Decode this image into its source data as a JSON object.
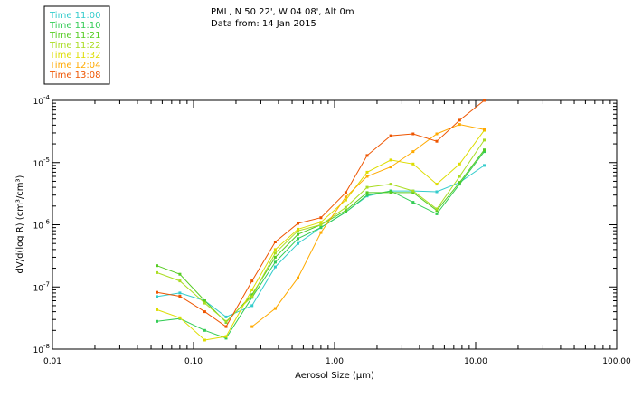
{
  "header": {
    "location": "PML, N 50 22', W 04 08', Alt 0m",
    "date_line": "Data from: 14 Jan 2015"
  },
  "chart_data": {
    "type": "line",
    "xlabel": "Aerosol Size (µm)",
    "ylabel": "dV/d(log R) (cm³/cm³)",
    "xscale": "log",
    "yscale": "log",
    "xlim": [
      0.01,
      100
    ],
    "ylim": [
      1e-08,
      0.0001
    ],
    "xticks": [
      0.01,
      0.1,
      1,
      10,
      100
    ],
    "xtick_labels": [
      "0.01",
      "0.10",
      "1.00",
      "10.00",
      "100.00"
    ],
    "yticks": [
      1e-08,
      1e-07,
      1e-06,
      1e-05,
      0.0001
    ],
    "ytick_labels": [
      {
        "base": "10",
        "exp": "-8"
      },
      {
        "base": "10",
        "exp": "-7"
      },
      {
        "base": "10",
        "exp": "-6"
      },
      {
        "base": "10",
        "exp": "-5"
      },
      {
        "base": "10",
        "exp": "-4"
      }
    ],
    "grid": false,
    "legend_position": "top-left",
    "series": [
      {
        "name": "Time 11:00",
        "color": "#33cccc",
        "x": [
          0.055,
          0.08,
          0.12,
          0.17,
          0.26,
          0.38,
          0.55,
          0.8,
          1.2,
          1.7,
          2.5,
          3.6,
          5.3,
          7.7,
          11.5
        ],
        "y": [
          7e-08,
          8e-08,
          6e-08,
          3.3e-08,
          5e-08,
          2.1e-07,
          5e-07,
          9e-07,
          1.6e-06,
          2.9e-06,
          3.5e-06,
          3.5e-06,
          3.4e-06,
          4.8e-06,
          9e-06
        ]
      },
      {
        "name": "Time 11:10",
        "color": "#33cc55",
        "x": [
          0.055,
          0.08,
          0.12,
          0.17,
          0.26,
          0.38,
          0.55,
          0.8,
          1.2,
          1.7,
          2.5,
          3.6,
          5.3,
          7.7,
          11.5
        ],
        "y": [
          2.8e-08,
          3.1e-08,
          2e-08,
          1.5e-08,
          6.8e-08,
          2.5e-07,
          6e-07,
          9e-07,
          1.6e-06,
          3e-06,
          3.5e-06,
          2.3e-06,
          1.5e-06,
          4.5e-06,
          1.5e-05
        ]
      },
      {
        "name": "Time 11:21",
        "color": "#55cc22",
        "x": [
          0.055,
          0.08,
          0.12,
          0.17,
          0.26,
          0.38,
          0.55,
          0.8,
          1.2,
          1.7,
          2.5,
          3.6,
          5.3,
          7.7,
          11.5
        ],
        "y": [
          2.2e-07,
          1.6e-07,
          6e-08,
          2.7e-08,
          7.5e-08,
          3e-07,
          7e-07,
          1e-06,
          1.7e-06,
          3.3e-06,
          3.3e-06,
          3.3e-06,
          1.7e-06,
          4.8e-06,
          1.6e-05
        ]
      },
      {
        "name": "Time 11:22",
        "color": "#aadd22",
        "x": [
          0.055,
          0.08,
          0.12,
          0.17,
          0.26,
          0.38,
          0.55,
          0.8,
          1.2,
          1.7,
          2.5,
          3.6,
          5.3,
          7.7,
          11.5
        ],
        "y": [
          1.7e-07,
          1.25e-07,
          5.5e-08,
          2.8e-08,
          7e-08,
          3.5e-07,
          8e-07,
          1e-06,
          1.9e-06,
          4e-06,
          4.5e-06,
          3.5e-06,
          1.8e-06,
          6e-06,
          2.3e-05
        ]
      },
      {
        "name": "Time 11:32",
        "color": "#dddd00",
        "x": [
          0.055,
          0.08,
          0.12,
          0.17,
          0.26,
          0.38,
          0.55,
          0.8,
          1.2,
          1.7,
          2.5,
          3.6,
          5.3,
          7.7,
          11.5
        ],
        "y": [
          4.3e-08,
          3.2e-08,
          1.4e-08,
          1.6e-08,
          9e-08,
          4e-07,
          8.5e-07,
          1.1e-06,
          2.5e-06,
          7e-06,
          1.1e-05,
          9.5e-06,
          4.5e-06,
          9.5e-06,
          3.3e-05
        ]
      },
      {
        "name": "Time 12:04",
        "color": "#ffaa00",
        "x": [
          0.26,
          0.38,
          0.55,
          0.8,
          1.2,
          1.7,
          2.5,
          3.6,
          5.3,
          7.7,
          11.5
        ],
        "y": [
          2.3e-08,
          4.5e-08,
          1.4e-07,
          7.5e-07,
          2.8e-06,
          6e-06,
          8.5e-06,
          1.5e-05,
          2.9e-05,
          4.1e-05,
          3.4e-05
        ]
      },
      {
        "name": "Time 13:08",
        "color": "#ee5500",
        "x": [
          0.055,
          0.08,
          0.12,
          0.17,
          0.26,
          0.38,
          0.55,
          0.8,
          1.2,
          1.7,
          2.5,
          3.6,
          5.3,
          7.7,
          11.5
        ],
        "y": [
          8.2e-08,
          7.1e-08,
          4e-08,
          2.3e-08,
          1.25e-07,
          5.3e-07,
          1.05e-06,
          1.3e-06,
          3.3e-06,
          1.3e-05,
          2.7e-05,
          2.9e-05,
          2.2e-05,
          4.8e-05,
          0.0001
        ]
      }
    ]
  }
}
